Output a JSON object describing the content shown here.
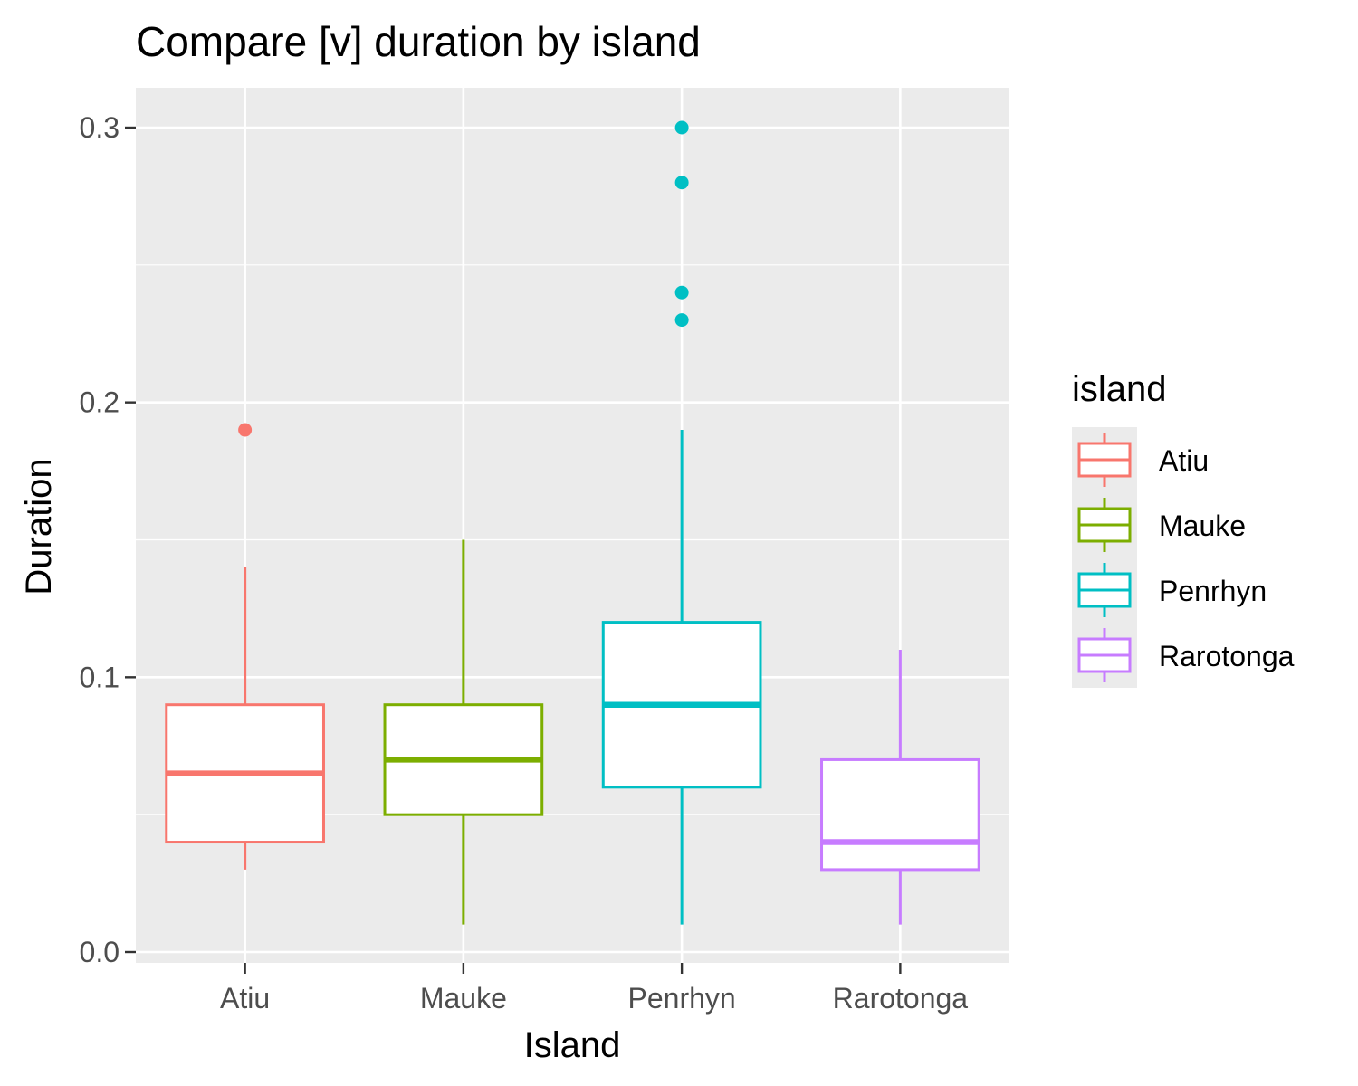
{
  "chart_data": {
    "type": "boxplot",
    "title": "Compare [v] duration by island",
    "xlabel": "Island",
    "ylabel": "Duration",
    "ylim": [
      -0.003,
      0.315
    ],
    "y_ticks": [
      "0.0",
      "0.1",
      "0.2",
      "0.3"
    ],
    "y_tick_values": [
      0.0,
      0.1,
      0.2,
      0.3
    ],
    "grid": true,
    "legend": {
      "title": "island",
      "position": "right"
    },
    "categories": [
      "Atiu",
      "Mauke",
      "Penrhyn",
      "Rarotonga"
    ],
    "series": [
      {
        "name": "Atiu",
        "color": "#F8766D",
        "min": 0.03,
        "q1": 0.04,
        "median": 0.065,
        "q3": 0.09,
        "max": 0.14,
        "outliers": [
          0.19
        ]
      },
      {
        "name": "Mauke",
        "color": "#7CAE00",
        "min": 0.01,
        "q1": 0.05,
        "median": 0.07,
        "q3": 0.09,
        "max": 0.15,
        "outliers": []
      },
      {
        "name": "Penrhyn",
        "color": "#00BFC4",
        "min": 0.01,
        "q1": 0.06,
        "median": 0.09,
        "q3": 0.12,
        "max": 0.19,
        "outliers": [
          0.23,
          0.24,
          0.28,
          0.3
        ]
      },
      {
        "name": "Rarotonga",
        "color": "#C77CFF",
        "min": 0.01,
        "q1": 0.03,
        "median": 0.04,
        "q3": 0.07,
        "max": 0.11,
        "outliers": []
      }
    ]
  }
}
